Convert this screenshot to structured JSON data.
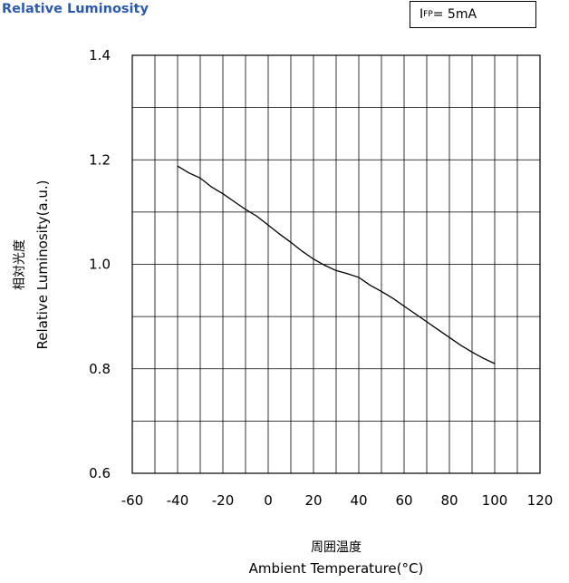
{
  "chart_data": {
    "type": "line",
    "title": "Relative Luminosity",
    "condition": {
      "symbol": "I",
      "subscript": "FP",
      "value": "= 5mA"
    },
    "xlabel_jp": "周囲温度",
    "xlabel": "Ambient Temperature(°C)",
    "ylabel_jp": "相対光度",
    "ylabel": "Relative Luminosity(a.u.)",
    "xlim": [
      -60,
      120
    ],
    "ylim": [
      0.6,
      1.4
    ],
    "xticks": [
      -60,
      -40,
      -20,
      0,
      20,
      40,
      60,
      80,
      100,
      120
    ],
    "xtick_labels": [
      "-60",
      "-40",
      "-20",
      "0",
      "20",
      "40",
      "60",
      "80",
      "100",
      "120"
    ],
    "yticks": [
      0.6,
      0.8,
      1.0,
      1.2,
      1.4
    ],
    "ytick_labels": [
      "0.6",
      "0.8",
      "1.0",
      "1.2",
      "1.4"
    ],
    "grid": true,
    "x_minor_step": 10,
    "y_minor_step": 0.1,
    "series": [
      {
        "x": [
          -40,
          -35,
          -30,
          -25,
          -20,
          -15,
          -10,
          -5,
          0,
          5,
          10,
          15,
          20,
          25,
          30,
          35,
          40,
          45,
          50,
          55,
          60,
          65,
          70,
          75,
          80,
          85,
          90,
          95,
          100
        ],
        "y": [
          1.188,
          1.175,
          1.165,
          1.148,
          1.135,
          1.12,
          1.105,
          1.092,
          1.075,
          1.058,
          1.042,
          1.025,
          1.01,
          0.998,
          0.988,
          0.982,
          0.975,
          0.96,
          0.948,
          0.935,
          0.92,
          0.905,
          0.89,
          0.875,
          0.86,
          0.845,
          0.832,
          0.82,
          0.81
        ]
      }
    ]
  }
}
